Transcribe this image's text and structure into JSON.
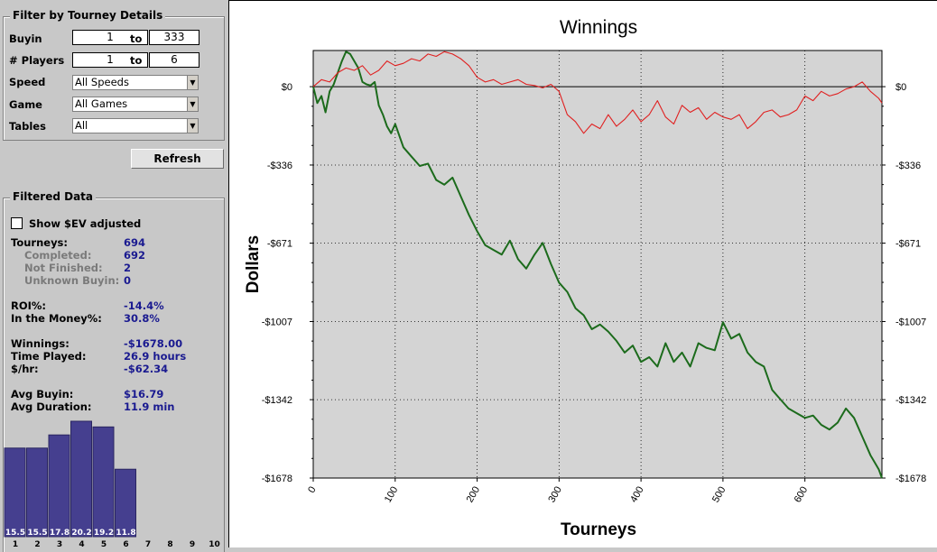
{
  "filter": {
    "title": "Filter by Tourney Details",
    "buyin_label": "Buyin",
    "buyin_from": "1",
    "to1": "to",
    "buyin_to": "333",
    "players_label": "# Players",
    "players_from": "1",
    "to2": "to",
    "players_to": "6",
    "speed_label": "Speed",
    "speed_value": "All Speeds",
    "game_label": "Game",
    "game_value": "All Games",
    "tables_label": "Tables",
    "tables_value": "All",
    "refresh_label": "Refresh"
  },
  "filtered": {
    "title": "Filtered Data",
    "show_ev_label": "Show $EV adjusted",
    "show_ev_checked": false,
    "stats": [
      {
        "label": "Tourneys:",
        "value": "694",
        "sub": false
      },
      {
        "label": "Completed:",
        "value": "692",
        "sub": true
      },
      {
        "label": "Not Finished:",
        "value": "2",
        "sub": true
      },
      {
        "label": "Unknown Buyin:",
        "value": "0",
        "sub": true
      },
      {
        "label": "ROI%:",
        "value": "-14.4%",
        "sub": false
      },
      {
        "label": "In the Money%:",
        "value": "30.8%",
        "sub": false
      },
      {
        "label": "Winnings:",
        "value": "-$1678.00",
        "sub": false
      },
      {
        "label": "Time Played:",
        "value": "26.9 hours",
        "sub": false
      },
      {
        "label": "$/hr:",
        "value": "-$62.34",
        "sub": false
      },
      {
        "label": "Avg Buyin:",
        "value": "$16.79",
        "sub": false
      },
      {
        "label": "Avg Duration:",
        "value": "11.9 min",
        "sub": false
      }
    ]
  },
  "histogram": {
    "bar_color": "#453f8f",
    "values": [
      15.5,
      15.5,
      17.8,
      20.2,
      19.2,
      11.8
    ],
    "value_labels": [
      "15.5",
      "15.5",
      "17.8",
      "20.2",
      "19.2",
      "11.8"
    ],
    "positions": [
      "1",
      "2",
      "3",
      "4",
      "5",
      "6",
      "7",
      "8",
      "9",
      "10"
    ]
  },
  "chart_data": {
    "type": "line",
    "title": "Winnings",
    "xlabel": "Tourneys",
    "ylabel": "Dollars",
    "xlim": [
      0,
      694
    ],
    "ylim": [
      -1678,
      155
    ],
    "x_ticks": [
      0,
      100,
      200,
      300,
      400,
      500,
      600
    ],
    "x_tick_labels": [
      "0",
      "100",
      "200",
      "300",
      "400",
      "500",
      "600"
    ],
    "y_ticks": [
      0,
      -336,
      -671,
      -1007,
      -1342,
      -1678
    ],
    "y_tick_labels": [
      "$0",
      "-$336",
      "-$671",
      "-$1007",
      "-$1342",
      "-$1678"
    ],
    "grid": true,
    "background": "#d4d4d4",
    "series": [
      {
        "color": "#1c6b1c",
        "x": [
          0,
          5,
          10,
          15,
          20,
          25,
          30,
          35,
          40,
          45,
          50,
          55,
          60,
          65,
          70,
          75,
          80,
          85,
          90,
          95,
          100,
          110,
          120,
          130,
          140,
          150,
          160,
          170,
          180,
          190,
          200,
          210,
          220,
          230,
          240,
          250,
          260,
          270,
          280,
          290,
          300,
          310,
          320,
          330,
          340,
          350,
          360,
          370,
          380,
          390,
          400,
          410,
          420,
          430,
          440,
          450,
          460,
          470,
          480,
          490,
          500,
          510,
          520,
          530,
          540,
          550,
          560,
          570,
          580,
          590,
          600,
          610,
          620,
          630,
          640,
          650,
          660,
          670,
          680,
          690,
          694
        ],
        "y": [
          0,
          -70,
          -40,
          -110,
          -20,
          10,
          60,
          110,
          150,
          140,
          110,
          80,
          20,
          10,
          5,
          20,
          -80,
          -120,
          -170,
          -200,
          -160,
          -260,
          -300,
          -340,
          -330,
          -400,
          -420,
          -390,
          -470,
          -550,
          -620,
          -680,
          -700,
          -720,
          -660,
          -740,
          -780,
          -720,
          -670,
          -760,
          -840,
          -880,
          -950,
          -980,
          -1040,
          -1020,
          -1050,
          -1090,
          -1140,
          -1110,
          -1180,
          -1160,
          -1200,
          -1100,
          -1180,
          -1140,
          -1200,
          -1100,
          -1120,
          -1130,
          -1010,
          -1080,
          -1060,
          -1140,
          -1180,
          -1200,
          -1300,
          -1340,
          -1380,
          -1400,
          -1420,
          -1410,
          -1450,
          -1470,
          -1440,
          -1380,
          -1420,
          -1500,
          -1580,
          -1640,
          -1678
        ]
      },
      {
        "color": "#e02020",
        "x": [
          0,
          10,
          20,
          30,
          40,
          50,
          60,
          70,
          80,
          90,
          100,
          110,
          120,
          130,
          140,
          150,
          160,
          170,
          180,
          190,
          200,
          210,
          220,
          230,
          240,
          250,
          260,
          270,
          280,
          290,
          300,
          310,
          320,
          330,
          340,
          350,
          360,
          370,
          380,
          390,
          400,
          410,
          420,
          430,
          440,
          450,
          460,
          470,
          480,
          490,
          500,
          510,
          520,
          530,
          540,
          550,
          560,
          570,
          580,
          590,
          600,
          610,
          620,
          630,
          640,
          650,
          660,
          670,
          680,
          690,
          694
        ],
        "y": [
          0,
          30,
          20,
          60,
          80,
          70,
          90,
          50,
          70,
          110,
          90,
          100,
          120,
          110,
          140,
          130,
          150,
          140,
          120,
          90,
          40,
          20,
          30,
          10,
          20,
          30,
          10,
          5,
          -5,
          10,
          -20,
          -120,
          -150,
          -200,
          -160,
          -180,
          -120,
          -170,
          -140,
          -100,
          -150,
          -120,
          -60,
          -130,
          -160,
          -80,
          -110,
          -90,
          -140,
          -110,
          -130,
          -140,
          -120,
          -180,
          -150,
          -110,
          -100,
          -130,
          -120,
          -100,
          -40,
          -60,
          -20,
          -40,
          -30,
          -10,
          0,
          20,
          -20,
          -50,
          -70
        ]
      }
    ]
  }
}
